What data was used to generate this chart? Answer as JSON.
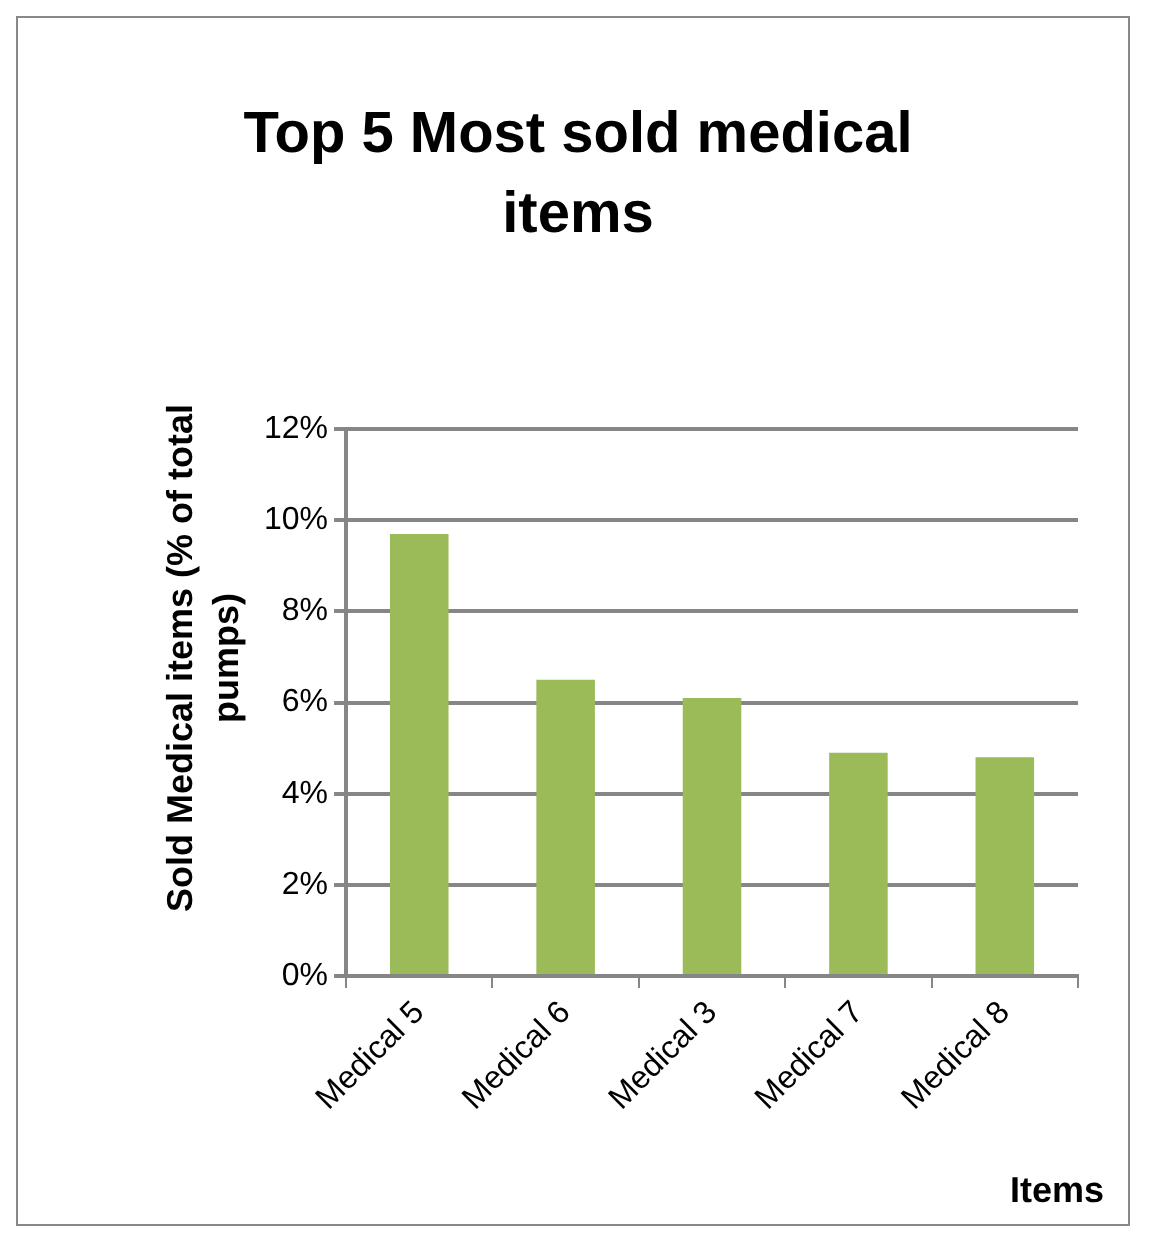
{
  "chart_data": {
    "type": "bar",
    "title": "Top 5 Most sold medical items",
    "xlabel": "Items",
    "ylabel": "Sold Medical items (% of total pumps)",
    "categories": [
      "Medical 5",
      "Medical 6",
      "Medical 3",
      "Medical 7",
      "Medical 8"
    ],
    "values": [
      9.7,
      6.5,
      6.1,
      4.9,
      4.8
    ],
    "color": "#9bbb59",
    "ylim": [
      0,
      12
    ],
    "yticks": [
      {
        "value": 0,
        "label": "0%"
      },
      {
        "value": 2,
        "label": "2%"
      },
      {
        "value": 4,
        "label": "4%"
      },
      {
        "value": 6,
        "label": "6%"
      },
      {
        "value": 8,
        "label": "8%"
      },
      {
        "value": 10,
        "label": "10%"
      },
      {
        "value": 12,
        "label": "12%"
      }
    ],
    "grid": "y",
    "legend": false
  }
}
